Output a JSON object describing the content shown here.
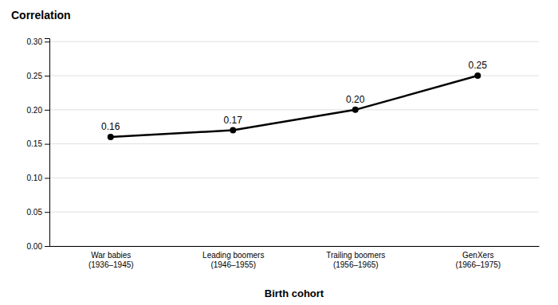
{
  "chart_data": {
    "type": "line",
    "ylabel": "Correlation",
    "xlabel": "Birth cohort",
    "categories": [
      "War babies\n(1936–1945)",
      "Leading boomers\n(1946–1955)",
      "Trailing boomers\n(1956–1965)",
      "GenXers\n(1966–1975)"
    ],
    "values": [
      0.16,
      0.17,
      0.2,
      0.25
    ],
    "value_labels": [
      "0.16",
      "0.17",
      "0.20",
      "0.25"
    ],
    "data_labels": true,
    "color": "#000000",
    "marker": "circle",
    "ylim": [
      0.0,
      0.305
    ],
    "yticks": [
      {
        "value": 0.0,
        "label": "0.00"
      },
      0.05,
      {
        "value": 0.1,
        "label": "0.10"
      },
      0.15,
      {
        "value": 0.2,
        "label": "0.20"
      },
      0.25,
      {
        "value": 0.3,
        "label": "0.30"
      }
    ],
    "grid": true
  }
}
